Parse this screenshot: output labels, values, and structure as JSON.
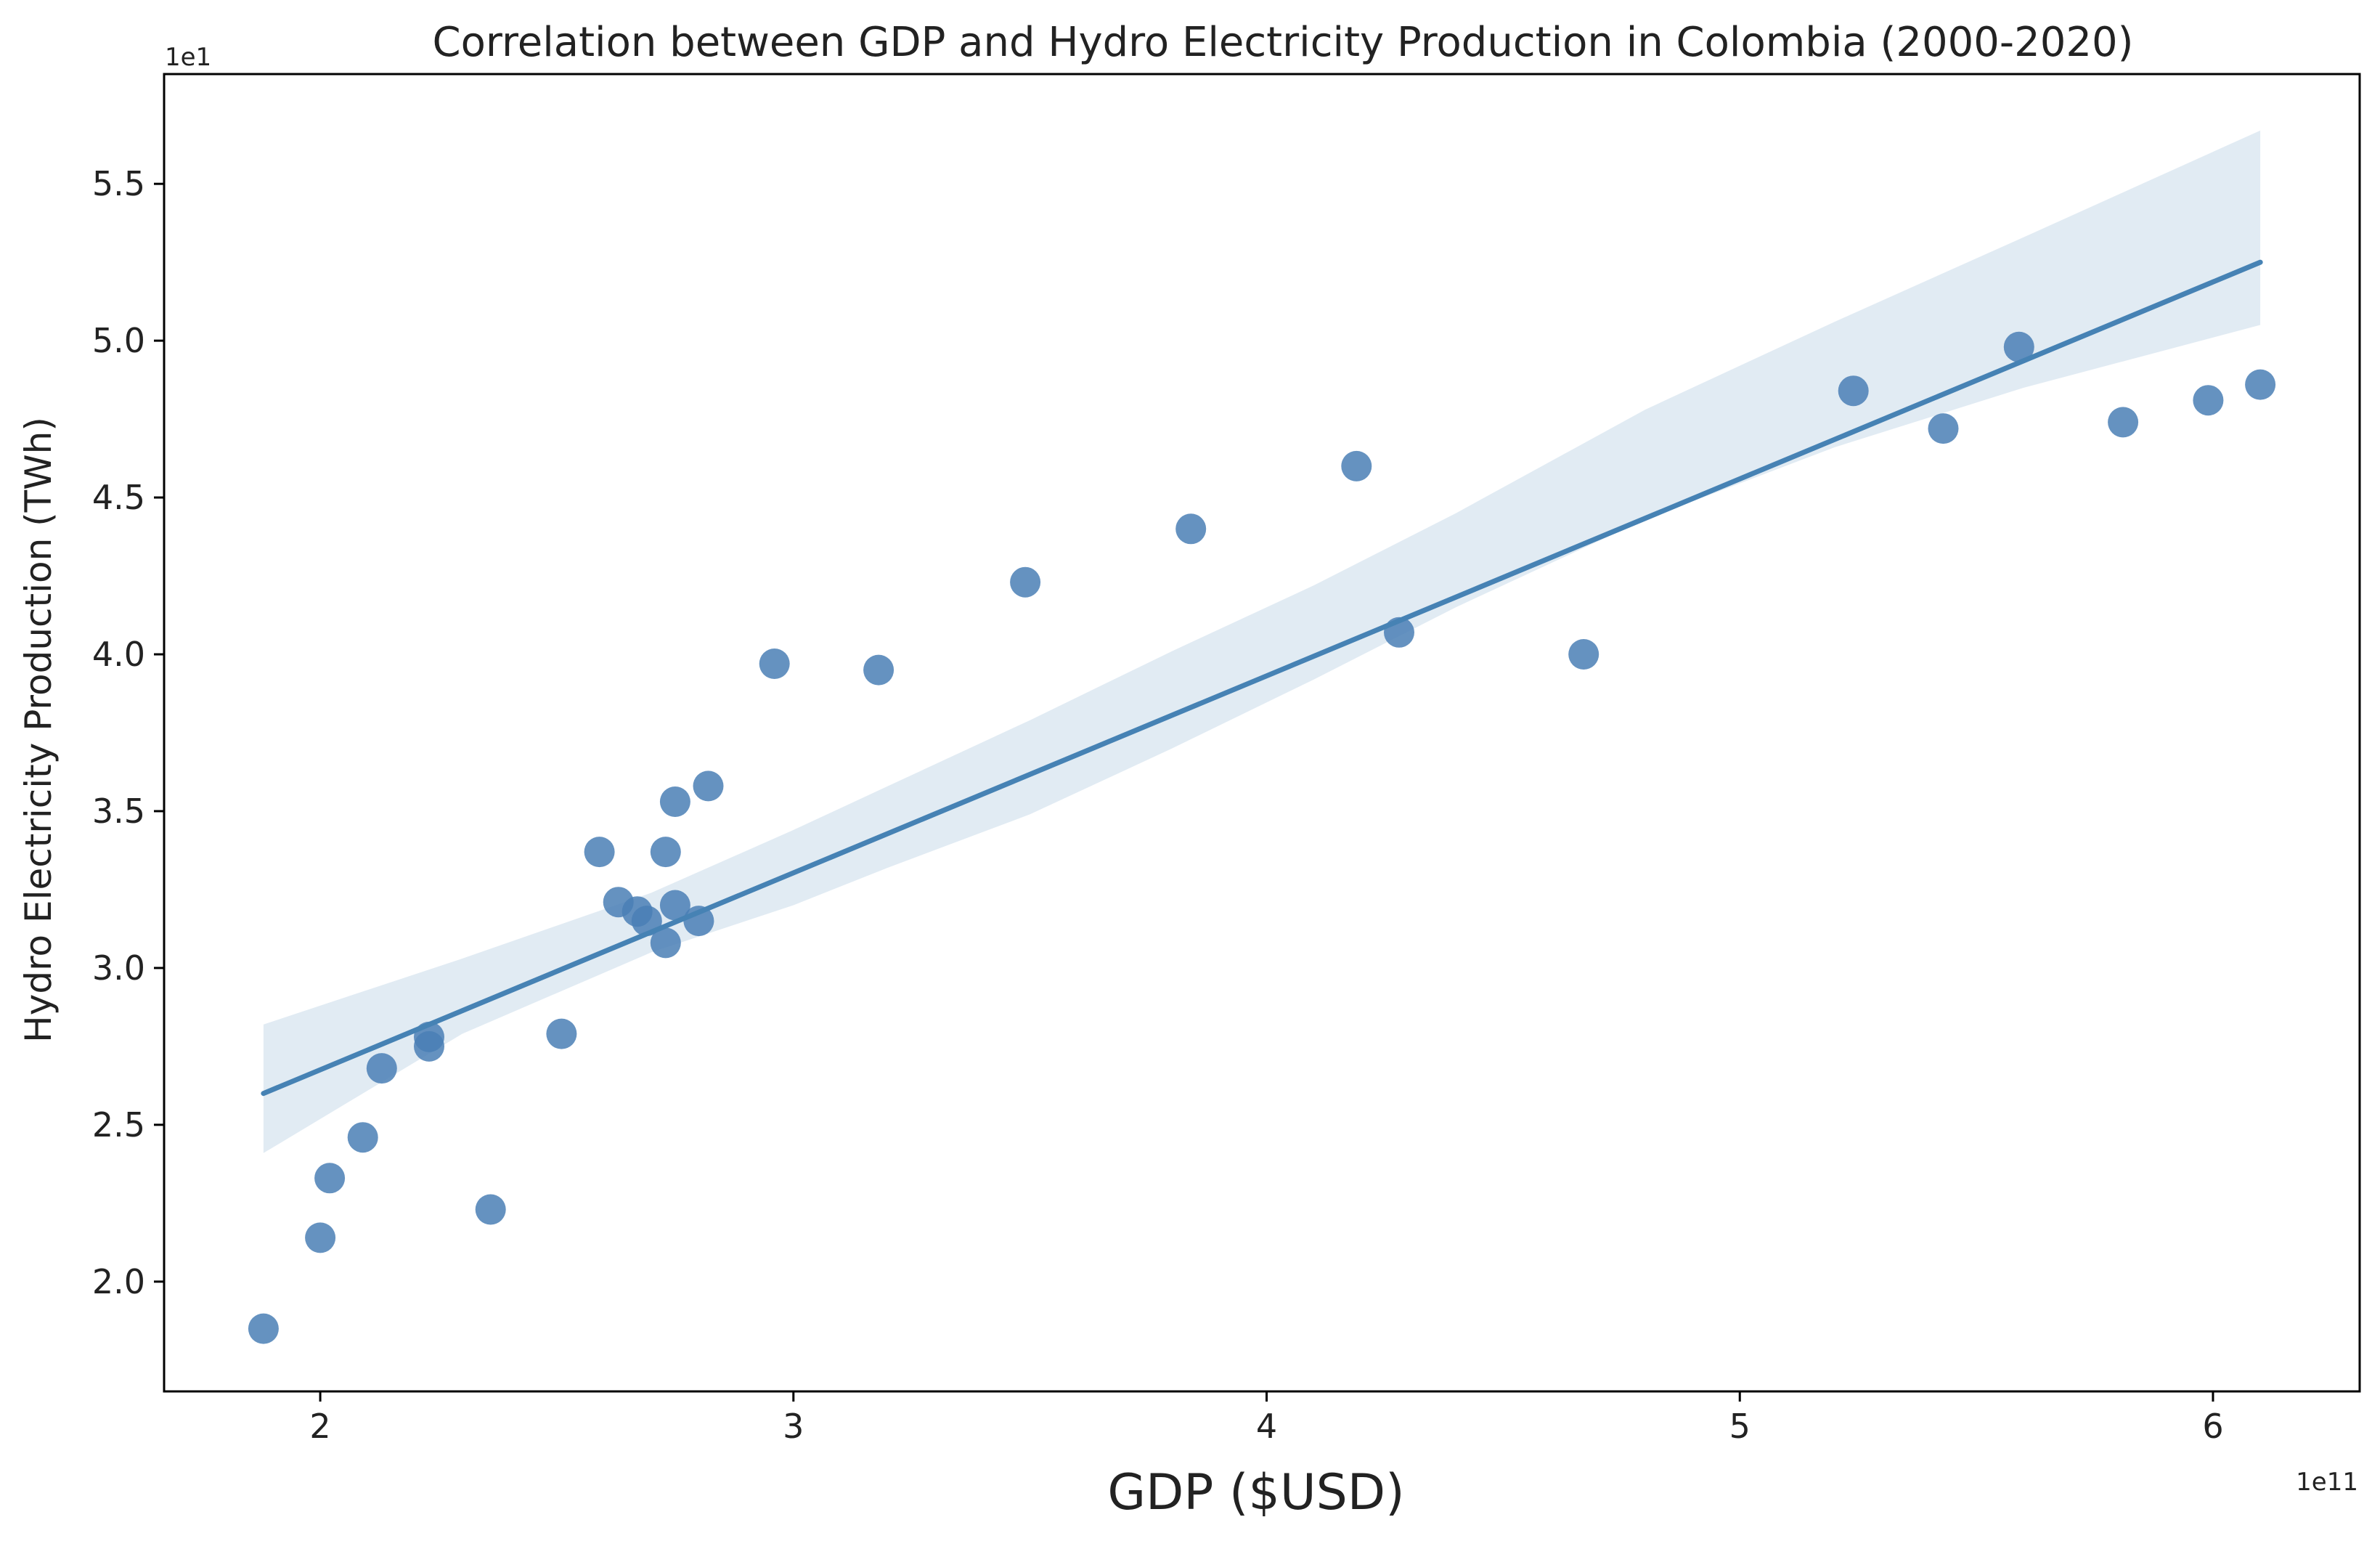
{
  "chart_data": {
    "type": "scatter",
    "title": "Correlation between GDP and Hydro Electricity Production in Colombia (2000-2020)",
    "xlabel": "GDP ($USD)",
    "ylabel": "Hydro Electricity Production (TWh)",
    "x_offset_label": "1e11",
    "y_offset_label": "1e1",
    "xlim": [
      1.67,
      6.31
    ],
    "ylim": [
      1.65,
      5.85
    ],
    "xticks": [
      2,
      3,
      4,
      5,
      6
    ],
    "yticks": [
      2.0,
      2.5,
      3.0,
      3.5,
      4.0,
      4.5,
      5.0,
      5.5
    ],
    "xtick_labels": [
      "2",
      "3",
      "4",
      "5",
      "6"
    ],
    "ytick_labels": [
      "2.0",
      "2.5",
      "3.0",
      "3.5",
      "4.0",
      "4.5",
      "5.0",
      "5.5"
    ],
    "grid": false,
    "point_color": "#4a7fb5",
    "line_color": "#4682b4",
    "band_color": "#dce7f1",
    "points": [
      {
        "x": 1.88,
        "y": 1.85
      },
      {
        "x": 2.0,
        "y": 2.14
      },
      {
        "x": 2.02,
        "y": 2.33
      },
      {
        "x": 2.09,
        "y": 2.46
      },
      {
        "x": 2.13,
        "y": 2.68
      },
      {
        "x": 2.23,
        "y": 2.78
      },
      {
        "x": 2.23,
        "y": 2.75
      },
      {
        "x": 2.36,
        "y": 2.23
      },
      {
        "x": 2.51,
        "y": 2.79
      },
      {
        "x": 2.59,
        "y": 3.37
      },
      {
        "x": 2.63,
        "y": 3.21
      },
      {
        "x": 2.67,
        "y": 3.18
      },
      {
        "x": 2.69,
        "y": 3.15
      },
      {
        "x": 2.73,
        "y": 3.37
      },
      {
        "x": 2.73,
        "y": 3.08
      },
      {
        "x": 2.75,
        "y": 3.53
      },
      {
        "x": 2.75,
        "y": 3.2
      },
      {
        "x": 2.8,
        "y": 3.15
      },
      {
        "x": 2.82,
        "y": 3.58
      },
      {
        "x": 2.96,
        "y": 3.97
      },
      {
        "x": 3.18,
        "y": 3.95
      },
      {
        "x": 3.49,
        "y": 4.23
      },
      {
        "x": 3.84,
        "y": 4.4
      },
      {
        "x": 4.19,
        "y": 4.6
      },
      {
        "x": 4.28,
        "y": 4.07
      },
      {
        "x": 4.67,
        "y": 4.0
      },
      {
        "x": 5.24,
        "y": 4.84
      },
      {
        "x": 5.43,
        "y": 4.72
      },
      {
        "x": 5.59,
        "y": 4.98
      },
      {
        "x": 5.81,
        "y": 4.74
      },
      {
        "x": 5.99,
        "y": 4.81
      },
      {
        "x": 6.1,
        "y": 4.86
      }
    ],
    "regression_line": [
      {
        "x": 1.88,
        "y": 2.6
      },
      {
        "x": 6.1,
        "y": 5.25
      }
    ],
    "confidence_band": {
      "x": [
        1.88,
        2.3,
        2.7,
        3.0,
        3.2,
        3.5,
        3.8,
        4.1,
        4.4,
        4.8,
        5.2,
        5.6,
        6.1
      ],
      "upper": [
        2.82,
        3.03,
        3.24,
        3.44,
        3.58,
        3.79,
        4.01,
        4.22,
        4.45,
        4.78,
        5.06,
        5.33,
        5.67
      ],
      "lower": [
        2.41,
        2.79,
        3.05,
        3.2,
        3.32,
        3.49,
        3.7,
        3.92,
        4.15,
        4.43,
        4.66,
        4.85,
        5.05
      ]
    }
  }
}
